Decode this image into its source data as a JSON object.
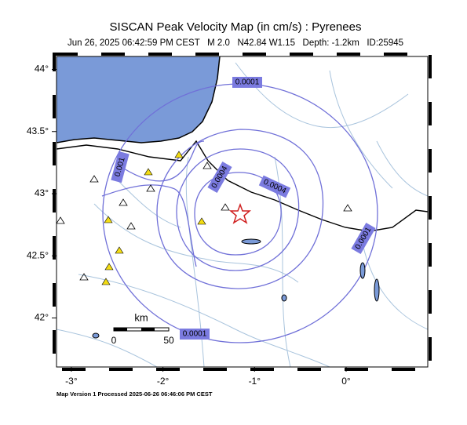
{
  "header": {
    "title": "SISCAN Peak Velocity Map (in cm/s) : Pyrenees",
    "subtitle": "Jun 26, 2025 06:42:59 PM CEST   M 2.0   N42.84 W1.15   Depth: -1.2km   ID:25945"
  },
  "axes": {
    "x_ticks": [
      {
        "value": -3,
        "label": "-3°"
      },
      {
        "value": -2,
        "label": "-2°"
      },
      {
        "value": -1,
        "label": "-1°"
      },
      {
        "value": 0,
        "label": "0°"
      }
    ],
    "y_ticks": [
      {
        "value": 44,
        "label": "44°"
      },
      {
        "value": 43.5,
        "label": "43.5°"
      },
      {
        "value": 43,
        "label": "43°"
      },
      {
        "value": 42.5,
        "label": "42.5°"
      },
      {
        "value": 42,
        "label": "42°"
      }
    ]
  },
  "contour_labels": [
    "0.0001",
    "0.0001",
    "0.001",
    "0.0004",
    "0.0004",
    "0.0001"
  ],
  "scale_bar": {
    "unit": "km",
    "start": "0",
    "end": "50"
  },
  "footer": "Map Version 1 Processed 2025-06-26 06:46:06 PM CEST"
}
